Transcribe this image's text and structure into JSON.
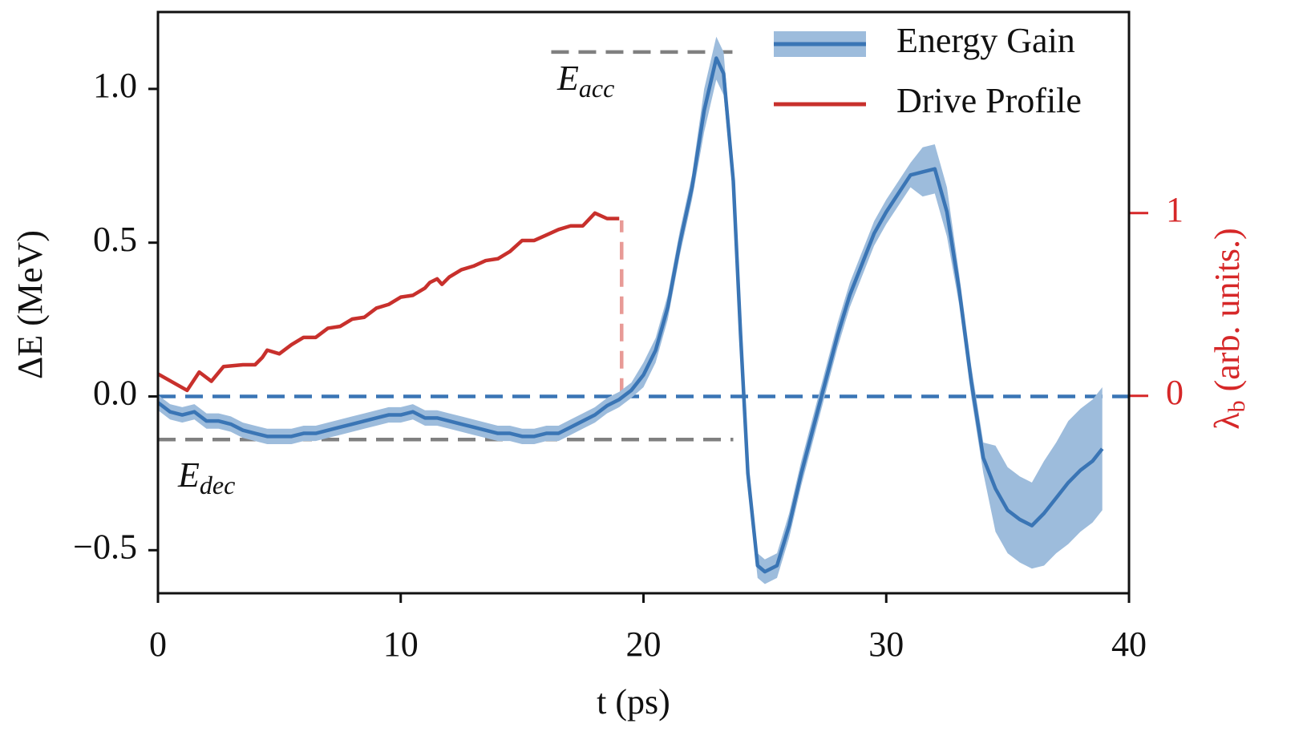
{
  "chart_data": {
    "type": "line",
    "xlabel": "t (ps)",
    "ylabel": "ΔE (MeV)",
    "y2label": {
      "symbol": "λ",
      "subscript": "b",
      "text": " (arb. units.)"
    },
    "xlim": [
      0,
      40
    ],
    "xticks": [
      0,
      10,
      20,
      30,
      40
    ],
    "ylim": [
      -0.64,
      1.25
    ],
    "yticks": [
      {
        "value": -0.5,
        "label": "−0.5"
      },
      {
        "value": 0,
        "label": "0.0"
      },
      0.5,
      {
        "value": 1,
        "label": "1.0"
      }
    ],
    "y2lim": [
      -1.08,
      2.1
    ],
    "y2ticks": [
      0,
      1
    ],
    "y2color": "#d62728",
    "legend": "upper right",
    "series": [
      {
        "name": "Energy Gain",
        "color": "#3a75b5",
        "band_color": "#9dbcdc",
        "x": [
          0,
          0.5,
          1,
          1.5,
          2,
          2.5,
          3,
          3.5,
          4,
          4.5,
          5,
          5.5,
          6,
          6.5,
          7,
          7.5,
          8,
          8.5,
          9,
          9.5,
          10,
          10.5,
          11,
          11.5,
          12,
          12.5,
          13,
          13.5,
          14,
          14.5,
          15,
          15.5,
          16,
          16.5,
          17,
          17.5,
          18,
          18.5,
          19,
          19.5,
          20,
          20.5,
          21,
          21.5,
          22,
          22.5,
          23,
          23.3,
          23.7,
          24,
          24.3,
          24.7,
          25,
          25.5,
          26,
          26.5,
          27,
          27.5,
          28,
          28.5,
          29,
          29.5,
          30,
          30.5,
          31,
          31.5,
          32,
          32.5,
          33,
          33.5,
          34,
          34.5,
          35,
          35.5,
          36,
          36.5,
          37,
          37.5,
          38,
          38.5,
          38.9
        ],
        "values": [
          -0.02,
          -0.05,
          -0.06,
          -0.05,
          -0.08,
          -0.08,
          -0.09,
          -0.11,
          -0.12,
          -0.13,
          -0.13,
          -0.13,
          -0.12,
          -0.12,
          -0.11,
          -0.1,
          -0.09,
          -0.08,
          -0.07,
          -0.06,
          -0.06,
          -0.05,
          -0.07,
          -0.07,
          -0.08,
          -0.09,
          -0.1,
          -0.11,
          -0.12,
          -0.12,
          -0.13,
          -0.13,
          -0.12,
          -0.12,
          -0.1,
          -0.08,
          -0.06,
          -0.03,
          -0.01,
          0.02,
          0.07,
          0.15,
          0.29,
          0.5,
          0.68,
          0.93,
          1.1,
          1.05,
          0.7,
          0.2,
          -0.25,
          -0.55,
          -0.57,
          -0.55,
          -0.42,
          -0.25,
          -0.1,
          0.05,
          0.2,
          0.33,
          0.43,
          0.53,
          0.6,
          0.66,
          0.72,
          0.73,
          0.74,
          0.6,
          0.35,
          0.05,
          -0.2,
          -0.3,
          -0.37,
          -0.4,
          -0.42,
          -0.38,
          -0.33,
          -0.28,
          -0.24,
          -0.21,
          -0.17
        ],
        "errors": [
          0.025,
          0.025,
          0.025,
          0.025,
          0.025,
          0.025,
          0.025,
          0.025,
          0.025,
          0.025,
          0.025,
          0.025,
          0.025,
          0.025,
          0.025,
          0.025,
          0.025,
          0.025,
          0.025,
          0.025,
          0.025,
          0.025,
          0.025,
          0.025,
          0.025,
          0.025,
          0.025,
          0.025,
          0.025,
          0.025,
          0.025,
          0.025,
          0.025,
          0.025,
          0.025,
          0.025,
          0.025,
          0.025,
          0.025,
          0.025,
          0.04,
          0.04,
          0.04,
          0.04,
          0.04,
          0.07,
          0.07,
          0.07,
          0.04,
          0.04,
          0.04,
          0.04,
          0.04,
          0.04,
          0.04,
          0.04,
          0.04,
          0.04,
          0.04,
          0.04,
          0.04,
          0.04,
          0.04,
          0.04,
          0.04,
          0.08,
          0.08,
          0.08,
          0.05,
          0.05,
          0.05,
          0.14,
          0.14,
          0.14,
          0.14,
          0.17,
          0.18,
          0.2,
          0.2,
          0.2,
          0.2
        ]
      },
      {
        "name": "Drive Profile",
        "color": "#c8302c",
        "axis": "y2",
        "x": [
          0,
          1.2,
          1.7,
          2.2,
          2.7,
          3.5,
          4,
          4.3,
          4.5,
          5,
          5.5,
          6,
          6.5,
          7,
          7.5,
          8,
          8.5,
          9,
          9.5,
          10,
          10.5,
          11,
          11.2,
          11.5,
          11.7,
          12,
          12.5,
          13,
          13.5,
          14,
          14.5,
          15,
          15.5,
          16,
          16.5,
          17,
          17.5,
          18,
          18.5,
          19
        ],
        "values": [
          0.12,
          0.03,
          0.13,
          0.08,
          0.16,
          0.17,
          0.17,
          0.21,
          0.25,
          0.23,
          0.28,
          0.32,
          0.32,
          0.37,
          0.38,
          0.42,
          0.43,
          0.48,
          0.5,
          0.54,
          0.55,
          0.59,
          0.62,
          0.64,
          0.61,
          0.65,
          0.69,
          0.71,
          0.74,
          0.75,
          0.79,
          0.85,
          0.85,
          0.88,
          0.91,
          0.93,
          0.93,
          1.0,
          0.97,
          0.97
        ]
      }
    ],
    "reference_lines": [
      {
        "y": 1.12,
        "x": [
          16.2,
          23.7
        ],
        "color": "#808080"
      },
      {
        "y": -0.14,
        "x": [
          0,
          23.7
        ],
        "color": "#808080"
      },
      {
        "y": 0,
        "color": "#3a75b5"
      },
      {
        "x": 19.1,
        "y2": [
          0,
          0.96
        ],
        "color": "#e89a96"
      }
    ],
    "annotations": [
      {
        "text": "E",
        "subscript": "acc"
      },
      {
        "text": "E",
        "subscript": "dec"
      }
    ]
  }
}
